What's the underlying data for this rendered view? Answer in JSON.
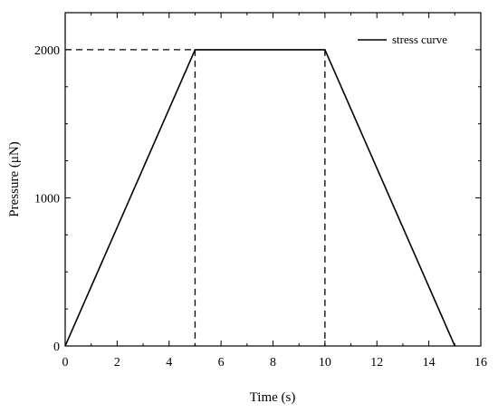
{
  "chart_data": {
    "type": "line",
    "title": "",
    "xlabel": "Time (s)",
    "ylabel": "Pressure (μN)",
    "xlim": [
      0,
      16
    ],
    "ylim": [
      0,
      2250
    ],
    "xticks": [
      0,
      2,
      4,
      6,
      8,
      10,
      12,
      14,
      16
    ],
    "yticks": [
      0,
      1000,
      2000
    ],
    "grid": false,
    "legend_position": "top-right",
    "series": [
      {
        "name": "stress curve",
        "style": "solid",
        "x": [
          0,
          5,
          10,
          15
        ],
        "y": [
          0,
          2000,
          2000,
          0
        ]
      }
    ],
    "reference_lines": [
      {
        "style": "dashed",
        "x": [
          0,
          5
        ],
        "y": [
          2000,
          2000
        ]
      },
      {
        "style": "dashed",
        "x": [
          5,
          5
        ],
        "y": [
          2000,
          0
        ]
      },
      {
        "style": "dashed",
        "x": [
          10,
          10
        ],
        "y": [
          2000,
          0
        ]
      }
    ]
  }
}
